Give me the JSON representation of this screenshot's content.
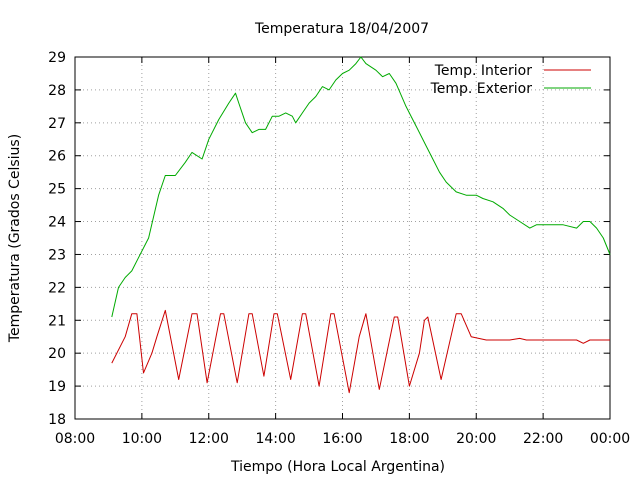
{
  "chart_data": {
    "type": "line",
    "title": "Temperatura 18/04/2007",
    "xlabel": "Tiempo (Hora Local Argentina)",
    "ylabel": "Temperatura (Grados Celsius)",
    "x_unit": "hours",
    "xlim": [
      8,
      24
    ],
    "ylim": [
      18,
      29
    ],
    "x_ticks": [
      {
        "value": 8,
        "label": "08:00"
      },
      {
        "value": 10,
        "label": "10:00"
      },
      {
        "value": 12,
        "label": "12:00"
      },
      {
        "value": 14,
        "label": "14:00"
      },
      {
        "value": 16,
        "label": "16:00"
      },
      {
        "value": 18,
        "label": "18:00"
      },
      {
        "value": 20,
        "label": "20:00"
      },
      {
        "value": 22,
        "label": "22:00"
      },
      {
        "value": 24,
        "label": "00:00"
      }
    ],
    "y_ticks": [
      {
        "value": 18,
        "label": "18"
      },
      {
        "value": 19,
        "label": "19"
      },
      {
        "value": 20,
        "label": "20"
      },
      {
        "value": 21,
        "label": "21"
      },
      {
        "value": 22,
        "label": "22"
      },
      {
        "value": 23,
        "label": "23"
      },
      {
        "value": 24,
        "label": "24"
      },
      {
        "value": 25,
        "label": "25"
      },
      {
        "value": 26,
        "label": "26"
      },
      {
        "value": 27,
        "label": "27"
      },
      {
        "value": 28,
        "label": "28"
      },
      {
        "value": 29,
        "label": "29"
      }
    ],
    "grid": true,
    "legend_position": "top-right",
    "series": [
      {
        "name": "Temp. Interior",
        "color": "#cc0000",
        "points": [
          [
            9.1,
            19.7
          ],
          [
            9.5,
            20.5
          ],
          [
            9.7,
            21.2
          ],
          [
            9.85,
            21.2
          ],
          [
            10.05,
            19.4
          ],
          [
            10.3,
            20.0
          ],
          [
            10.45,
            20.5
          ],
          [
            10.7,
            21.3
          ],
          [
            11.1,
            19.2
          ],
          [
            11.5,
            21.2
          ],
          [
            11.65,
            21.2
          ],
          [
            11.95,
            19.1
          ],
          [
            12.35,
            21.2
          ],
          [
            12.45,
            21.2
          ],
          [
            12.85,
            19.1
          ],
          [
            13.2,
            21.2
          ],
          [
            13.3,
            21.2
          ],
          [
            13.65,
            19.3
          ],
          [
            13.95,
            21.2
          ],
          [
            14.05,
            21.2
          ],
          [
            14.45,
            19.2
          ],
          [
            14.8,
            21.2
          ],
          [
            14.9,
            21.2
          ],
          [
            15.3,
            19.0
          ],
          [
            15.65,
            21.2
          ],
          [
            15.75,
            21.2
          ],
          [
            16.2,
            18.8
          ],
          [
            16.5,
            20.5
          ],
          [
            16.7,
            21.2
          ],
          [
            17.1,
            18.9
          ],
          [
            17.55,
            21.1
          ],
          [
            17.65,
            21.1
          ],
          [
            18.0,
            19.0
          ],
          [
            18.3,
            20.0
          ],
          [
            18.45,
            21.0
          ],
          [
            18.55,
            21.1
          ],
          [
            18.95,
            19.2
          ],
          [
            19.4,
            21.2
          ],
          [
            19.55,
            21.2
          ],
          [
            19.85,
            20.5
          ],
          [
            20.3,
            20.4
          ],
          [
            20.5,
            20.4
          ],
          [
            21.0,
            20.4
          ],
          [
            21.3,
            20.45
          ],
          [
            21.5,
            20.4
          ],
          [
            22.0,
            20.4
          ],
          [
            22.5,
            20.4
          ],
          [
            23.0,
            20.4
          ],
          [
            23.2,
            20.3
          ],
          [
            23.4,
            20.4
          ],
          [
            24.0,
            20.4
          ]
        ]
      },
      {
        "name": "Temp. Exterior",
        "color": "#00aa00",
        "points": [
          [
            9.1,
            21.1
          ],
          [
            9.3,
            22.0
          ],
          [
            9.5,
            22.3
          ],
          [
            9.7,
            22.5
          ],
          [
            9.9,
            22.9
          ],
          [
            10.2,
            23.5
          ],
          [
            10.5,
            24.8
          ],
          [
            10.7,
            25.4
          ],
          [
            11.0,
            25.4
          ],
          [
            11.3,
            25.8
          ],
          [
            11.5,
            26.1
          ],
          [
            11.8,
            25.9
          ],
          [
            12.0,
            26.5
          ],
          [
            12.3,
            27.1
          ],
          [
            12.6,
            27.6
          ],
          [
            12.8,
            27.9
          ],
          [
            12.9,
            27.6
          ],
          [
            13.1,
            27.0
          ],
          [
            13.3,
            26.7
          ],
          [
            13.5,
            26.8
          ],
          [
            13.7,
            26.8
          ],
          [
            13.9,
            27.2
          ],
          [
            14.1,
            27.2
          ],
          [
            14.3,
            27.3
          ],
          [
            14.5,
            27.2
          ],
          [
            14.6,
            27.0
          ],
          [
            14.8,
            27.3
          ],
          [
            15.0,
            27.6
          ],
          [
            15.2,
            27.8
          ],
          [
            15.4,
            28.1
          ],
          [
            15.6,
            28.0
          ],
          [
            15.8,
            28.3
          ],
          [
            16.0,
            28.5
          ],
          [
            16.2,
            28.6
          ],
          [
            16.4,
            28.8
          ],
          [
            16.55,
            29.0
          ],
          [
            16.7,
            28.8
          ],
          [
            17.0,
            28.6
          ],
          [
            17.2,
            28.4
          ],
          [
            17.4,
            28.5
          ],
          [
            17.6,
            28.2
          ],
          [
            17.9,
            27.5
          ],
          [
            18.2,
            26.9
          ],
          [
            18.5,
            26.3
          ],
          [
            18.7,
            25.9
          ],
          [
            18.9,
            25.5
          ],
          [
            19.1,
            25.2
          ],
          [
            19.4,
            24.9
          ],
          [
            19.7,
            24.8
          ],
          [
            20.0,
            24.8
          ],
          [
            20.2,
            24.7
          ],
          [
            20.5,
            24.6
          ],
          [
            20.8,
            24.4
          ],
          [
            21.0,
            24.2
          ],
          [
            21.3,
            24.0
          ],
          [
            21.6,
            23.8
          ],
          [
            21.8,
            23.9
          ],
          [
            22.2,
            23.9
          ],
          [
            22.6,
            23.9
          ],
          [
            23.0,
            23.8
          ],
          [
            23.2,
            24.0
          ],
          [
            23.4,
            24.0
          ],
          [
            23.6,
            23.8
          ],
          [
            23.8,
            23.5
          ],
          [
            24.0,
            23.0
          ]
        ]
      }
    ]
  }
}
